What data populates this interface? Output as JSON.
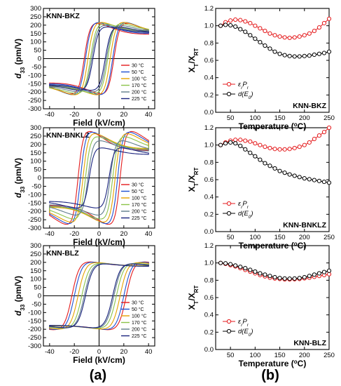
{
  "figure_labels": {
    "a": "(a)",
    "b": "(b)"
  },
  "chart_data": [
    {
      "type": "line",
      "panel": "a-top",
      "title": "KNN-BKZ",
      "xlabel": "Field (kV/cm)",
      "ylabel_main": "d",
      "ylabel_sub": "33",
      "ylabel_unit": " (pm/V)",
      "xlim": [
        -45,
        45
      ],
      "ylim": [
        -300,
        300
      ],
      "xticks": [
        -40,
        -20,
        0,
        20,
        40
      ],
      "yticks": [
        -300,
        -250,
        -200,
        -150,
        -100,
        -50,
        0,
        50,
        100,
        150,
        200,
        250,
        300
      ],
      "series": [
        {
          "name": "30 °C",
          "color": "#e41a1c",
          "Ec": 12,
          "Emax": 40,
          "dmax": 220,
          "dend": 145,
          "w": 4.5
        },
        {
          "name": "50 °C",
          "color": "#1f4fd1",
          "Ec": 11,
          "Emax": 40,
          "dmax": 225,
          "dend": 150,
          "w": 4.5
        },
        {
          "name": "100 °C",
          "color": "#e6a100",
          "Ec": 9,
          "Emax": 40,
          "dmax": 225,
          "dend": 160,
          "w": 4.5
        },
        {
          "name": "170 °C",
          "color": "#8bc34a",
          "Ec": 7,
          "Emax": 40,
          "dmax": 215,
          "dend": 165,
          "w": 4.5
        },
        {
          "name": "200 °C",
          "color": "#607d8b",
          "Ec": 6,
          "Emax": 40,
          "dmax": 205,
          "dend": 160,
          "w": 4.5
        },
        {
          "name": "225 °C",
          "color": "#1a237e",
          "Ec": 5,
          "Emax": 40,
          "dmax": 195,
          "dend": 155,
          "w": 4.5
        }
      ]
    },
    {
      "type": "line",
      "panel": "a-mid",
      "title": "KNN-BNKLZ",
      "xlabel": "Field (kV/cm)",
      "ylabel_main": "d",
      "ylabel_sub": "33",
      "ylabel_unit": " (pm/V)",
      "xlim": [
        -45,
        45
      ],
      "ylim": [
        -300,
        300
      ],
      "xticks": [
        -40,
        -20,
        0,
        20,
        40
      ],
      "yticks": [
        -300,
        -250,
        -200,
        -150,
        -100,
        -50,
        0,
        50,
        100,
        150,
        200,
        250,
        300
      ],
      "series": [
        {
          "name": "30 °C",
          "color": "#e41a1c",
          "Ec": 17,
          "Emax": 40,
          "dmax": 290,
          "dend": 165,
          "w": 4
        },
        {
          "name": "50 °C",
          "color": "#1f4fd1",
          "Ec": 15,
          "Emax": 40,
          "dmax": 285,
          "dend": 170,
          "w": 4
        },
        {
          "name": "100 °C",
          "color": "#e6a100",
          "Ec": 13,
          "Emax": 40,
          "dmax": 275,
          "dend": 175,
          "w": 4
        },
        {
          "name": "170 °C",
          "color": "#8bc34a",
          "Ec": 11,
          "Emax": 40,
          "dmax": 255,
          "dend": 170,
          "w": 4
        },
        {
          "name": "200 °C",
          "color": "#607d8b",
          "Ec": 9,
          "Emax": 40,
          "dmax": 230,
          "dend": 160,
          "w": 4
        },
        {
          "name": "225 °C",
          "color": "#1a237e",
          "Ec": 8,
          "Emax": 40,
          "dmax": 185,
          "dend": 140,
          "w": 4
        }
      ]
    },
    {
      "type": "line",
      "panel": "a-bot",
      "title": "KNN-BLZ",
      "xlabel": "Field (kV/cm)",
      "ylabel_main": "d",
      "ylabel_sub": "33",
      "ylabel_unit": " (pm/V)",
      "xlim": [
        -45,
        45
      ],
      "ylim": [
        -300,
        300
      ],
      "xticks": [
        -40,
        -20,
        0,
        20,
        40
      ],
      "yticks": [
        -300,
        -250,
        -200,
        -150,
        -100,
        -50,
        0,
        50,
        100,
        150,
        200,
        250,
        300
      ],
      "series": [
        {
          "name": "30 °C",
          "color": "#e41a1c",
          "Ec": 22,
          "Emax": 40,
          "dmax": 210,
          "dend": 180,
          "w": 6
        },
        {
          "name": "50 °C",
          "color": "#1f4fd1",
          "Ec": 20,
          "Emax": 40,
          "dmax": 208,
          "dend": 180,
          "w": 6
        },
        {
          "name": "100 °C",
          "color": "#e6a100",
          "Ec": 17,
          "Emax": 40,
          "dmax": 205,
          "dend": 180,
          "w": 6
        },
        {
          "name": "170 °C",
          "color": "#8bc34a",
          "Ec": 14,
          "Emax": 40,
          "dmax": 200,
          "dend": 178,
          "w": 6
        },
        {
          "name": "200 °C",
          "color": "#607d8b",
          "Ec": 12,
          "Emax": 40,
          "dmax": 198,
          "dend": 177,
          "w": 6
        },
        {
          "name": "225 °C",
          "color": "#1a237e",
          "Ec": 11,
          "Emax": 40,
          "dmax": 196,
          "dend": 176,
          "w": 6
        }
      ]
    },
    {
      "type": "scatter",
      "panel": "b-top",
      "title": "KNN-BKZ",
      "xlabel": "Temperature (",
      "xlabel_sup": "o",
      "xlabel_end": "C)",
      "ylabel_main": "X",
      "ylabel_sub1": "T",
      "ylabel_mid": "/X",
      "ylabel_sub2": "RT",
      "xlim": [
        20,
        250
      ],
      "ylim": [
        0,
        1.2
      ],
      "xticks": [
        50,
        100,
        150,
        200,
        250
      ],
      "yticks": [
        0.0,
        0.2,
        0.4,
        0.6,
        0.8,
        1.0,
        1.2
      ],
      "legend_position": "lower-left",
      "series": [
        {
          "name_main": "ε",
          "name_sub": "r",
          "name_end": "P",
          "name_sub2": "r",
          "color": "#e41a1c",
          "x": [
            30,
            40,
            50,
            60,
            70,
            80,
            90,
            100,
            110,
            120,
            130,
            140,
            150,
            160,
            170,
            180,
            190,
            200,
            210,
            220,
            230,
            240,
            250
          ],
          "y": [
            1.0,
            1.04,
            1.06,
            1.07,
            1.065,
            1.05,
            1.03,
            1.0,
            0.97,
            0.94,
            0.91,
            0.89,
            0.875,
            0.865,
            0.86,
            0.865,
            0.875,
            0.89,
            0.91,
            0.94,
            0.98,
            1.03,
            1.08
          ]
        },
        {
          "name_main": "d(E",
          "name_sub": "0",
          "name_end": ")",
          "name_sub2": "",
          "color": "#000000",
          "x": [
            30,
            40,
            50,
            60,
            70,
            80,
            90,
            100,
            110,
            120,
            130,
            140,
            150,
            160,
            170,
            180,
            190,
            200,
            210,
            220,
            230,
            240,
            250
          ],
          "y": [
            1.0,
            1.01,
            1.005,
            0.99,
            0.96,
            0.93,
            0.89,
            0.85,
            0.81,
            0.77,
            0.735,
            0.7,
            0.675,
            0.66,
            0.65,
            0.645,
            0.645,
            0.65,
            0.655,
            0.665,
            0.675,
            0.685,
            0.7
          ]
        }
      ]
    },
    {
      "type": "scatter",
      "panel": "b-mid",
      "title": "KNN-BNKLZ",
      "xlabel": "Temperature (",
      "xlabel_sup": "o",
      "xlabel_end": "C)",
      "ylabel_main": "X",
      "ylabel_sub1": "T",
      "ylabel_mid": "/X",
      "ylabel_sub2": "RT",
      "xlim": [
        20,
        250
      ],
      "ylim": [
        0,
        1.2
      ],
      "xticks": [
        50,
        100,
        150,
        200,
        250
      ],
      "yticks": [
        0.0,
        0.2,
        0.4,
        0.6,
        0.8,
        1.0,
        1.2
      ],
      "legend_position": "lower-left",
      "series": [
        {
          "name_main": "ε",
          "name_sub": "r",
          "name_end": "P",
          "name_sub2": "r",
          "color": "#e41a1c",
          "x": [
            30,
            40,
            50,
            60,
            70,
            80,
            90,
            100,
            110,
            120,
            130,
            140,
            150,
            160,
            170,
            180,
            190,
            200,
            210,
            220,
            230,
            240,
            250
          ],
          "y": [
            1.0,
            1.03,
            1.05,
            1.06,
            1.06,
            1.05,
            1.04,
            1.02,
            1.0,
            0.98,
            0.965,
            0.955,
            0.95,
            0.95,
            0.955,
            0.965,
            0.98,
            1.0,
            1.03,
            1.07,
            1.11,
            1.15,
            1.2
          ]
        },
        {
          "name_main": "d(E",
          "name_sub": "0",
          "name_end": ")",
          "name_sub2": "",
          "color": "#000000",
          "x": [
            30,
            40,
            50,
            60,
            70,
            80,
            90,
            100,
            110,
            120,
            130,
            140,
            150,
            160,
            170,
            180,
            190,
            200,
            210,
            220,
            230,
            240,
            250
          ],
          "y": [
            1.0,
            1.02,
            1.03,
            1.02,
            0.99,
            0.95,
            0.91,
            0.87,
            0.83,
            0.79,
            0.76,
            0.73,
            0.7,
            0.68,
            0.66,
            0.645,
            0.63,
            0.615,
            0.605,
            0.595,
            0.585,
            0.575,
            0.565
          ]
        }
      ]
    },
    {
      "type": "scatter",
      "panel": "b-bot",
      "title": "KNN-BLZ",
      "xlabel": "Temperature (",
      "xlabel_sup": "o",
      "xlabel_end": "C)",
      "ylabel_main": "X",
      "ylabel_sub1": "T",
      "ylabel_mid": "/X",
      "ylabel_sub2": "RT",
      "xlim": [
        20,
        250
      ],
      "ylim": [
        0,
        1.2
      ],
      "xticks": [
        50,
        100,
        150,
        200,
        250
      ],
      "yticks": [
        0.0,
        0.2,
        0.4,
        0.6,
        0.8,
        1.0,
        1.2
      ],
      "legend_position": "lower-left",
      "series": [
        {
          "name_main": "ε",
          "name_sub": "r",
          "name_end": "P",
          "name_sub2": "r",
          "color": "#e41a1c",
          "x": [
            30,
            40,
            50,
            60,
            70,
            80,
            90,
            100,
            110,
            120,
            130,
            140,
            150,
            160,
            170,
            180,
            190,
            200,
            210,
            220,
            230,
            240,
            250
          ],
          "y": [
            1.0,
            0.99,
            0.975,
            0.96,
            0.94,
            0.92,
            0.9,
            0.88,
            0.86,
            0.845,
            0.83,
            0.82,
            0.815,
            0.81,
            0.81,
            0.812,
            0.815,
            0.822,
            0.83,
            0.84,
            0.85,
            0.86,
            0.87
          ]
        },
        {
          "name_main": "d(E",
          "name_sub": "0",
          "name_end": ")",
          "name_sub2": "",
          "color": "#000000",
          "x": [
            30,
            40,
            50,
            60,
            70,
            80,
            90,
            100,
            110,
            120,
            130,
            140,
            150,
            160,
            170,
            180,
            190,
            200,
            210,
            220,
            230,
            240,
            250
          ],
          "y": [
            1.0,
            0.995,
            0.985,
            0.97,
            0.955,
            0.94,
            0.92,
            0.9,
            0.88,
            0.865,
            0.85,
            0.835,
            0.825,
            0.82,
            0.818,
            0.82,
            0.825,
            0.835,
            0.85,
            0.865,
            0.88,
            0.895,
            0.91
          ]
        }
      ]
    }
  ]
}
